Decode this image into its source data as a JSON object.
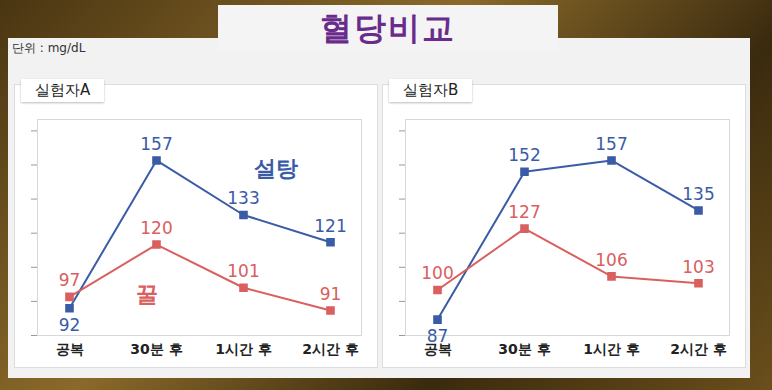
{
  "title": "혈당비교",
  "unit": "단위 : mg/dL",
  "chart_data": [
    {
      "type": "line",
      "title": "실험자A",
      "categories": [
        "공복",
        "30분 후",
        "1시간 후",
        "2시간 후"
      ],
      "series": [
        {
          "name": "설탕",
          "color": "#3a5ca6",
          "values": [
            92,
            157,
            133,
            121
          ]
        },
        {
          "name": "꿀",
          "color": "#d9605e",
          "values": [
            97,
            120,
            101,
            91
          ]
        }
      ],
      "ylim": [
        80,
        175
      ],
      "yticks": [
        80,
        95,
        110,
        125,
        140,
        155,
        170
      ],
      "grid": false,
      "tick_labels": "x",
      "data_labels": true,
      "marker": "square"
    },
    {
      "type": "line",
      "title": "실험자B",
      "categories": [
        "공복",
        "30분 후",
        "1시간 후",
        "2시간 후"
      ],
      "series": [
        {
          "color": "#3a5ca6",
          "values": [
            87,
            152,
            157,
            135
          ]
        },
        {
          "color": "#d9605e",
          "values": [
            100,
            127,
            106,
            103
          ]
        }
      ],
      "ylim": [
        80,
        175
      ],
      "yticks": [
        80,
        95,
        110,
        125,
        140,
        155,
        170
      ],
      "grid": false,
      "tick_labels": "x",
      "data_labels": true,
      "marker": "square"
    }
  ]
}
